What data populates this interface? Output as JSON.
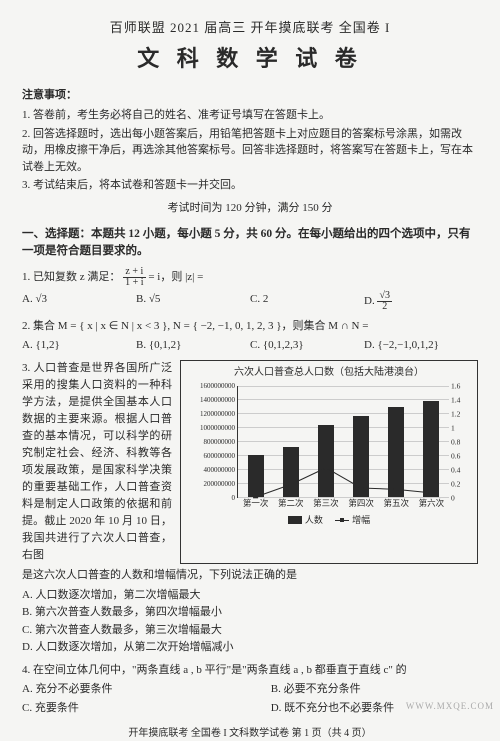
{
  "header": {
    "line1": "百师联盟 2021 届高三  开年摸底联考  全国卷 I",
    "line2": "文 科 数 学 试 卷"
  },
  "notice": {
    "title": "注意事项：",
    "items": [
      "1. 答卷前，考生务必将自己的姓名、准考证号填写在答题卡上。",
      "2. 回答选择题时，选出每小题答案后，用铅笔把答题卡上对应题目的答案标号涂黑，如需改动，用橡皮擦干净后，再选涂其他答案标号。回答非选择题时，将答案写在答题卡上，写在本试卷上无效。",
      "3. 考试结束后，将本试卷和答题卡一并交回。"
    ],
    "time": "考试时间为 120 分钟，满分 150 分"
  },
  "section1": {
    "title": "一、选择题：本题共 12 小题，每小题 5 分，共 60 分。在每小题给出的四个选项中，只有一项是符合题目要求的。"
  },
  "q1": {
    "stem_pre": "1. 已知复数 z 满足：",
    "stem_post": "= i，则 |z| =",
    "frac_num": "z + i",
    "frac_den": "1 + i",
    "A": "A. √3",
    "B": "B. √5",
    "C": "C. 2",
    "D_pre": "D. ",
    "D_num": "√3",
    "D_den": "2"
  },
  "q2": {
    "stem": "2. 集合 M = { x | x ∈ N | x < 3 }, N = { −2, −1, 0, 1, 2, 3 }，则集合 M ∩ N =",
    "A": "A. {1,2}",
    "B": "B. {0,1,2}",
    "C": "C. {0,1,2,3}",
    "D": "D. {−2,−1,0,1,2}"
  },
  "q3": {
    "text": "3. 人口普查是世界各国所广泛采用的搜集人口资料的一种科学方法，是提供全国基本人口数据的主要来源。根据人口普查的基本情况，可以科学的研究制定社会、经济、科教等各项发展政策，是国家科学决策的重要基础工作，人口普查资料是制定人口政策的依据和前提。截止 2020 年 10 月 10 日，我国共进行了六次人口普查，右图",
    "cont": "是这六次人口普查的人数和增幅情况，下列说法正确的是",
    "A": "A. 人口数逐次增加，第二次增幅最大",
    "B": "B. 第六次普查人数最多，第四次增幅最小",
    "C": "C. 第六次普查人数最多，第三次增幅最大",
    "D": "D. 人口数逐次增加，从第二次开始增幅减小"
  },
  "chart": {
    "title": "六次人口普查总人口数（包括大陆港澳台）",
    "yticks_left": [
      "1600000000",
      "1400000000",
      "1200000000",
      "1000000000",
      "800000000",
      "600000000",
      "400000000",
      "200000000",
      "0"
    ],
    "yticks_right": [
      "1.6",
      "1.4",
      "1.2",
      "1",
      "0.8",
      "0.6",
      "0.4",
      "0.2",
      "0"
    ],
    "xlabels": [
      "第一次",
      "第二次",
      "第三次",
      "第四次",
      "第五次",
      "第六次"
    ],
    "bar_values": [
      6.0,
      7.2,
      10.3,
      11.6,
      12.9,
      13.7
    ],
    "bar_max": 16,
    "line_values": [
      0,
      0.18,
      0.42,
      0.13,
      0.11,
      0.06
    ],
    "line_max": 1.6,
    "legend_bar": "人数",
    "legend_line": "增幅",
    "bar_color": "#2a2a2a",
    "grid_color": "#cccccc"
  },
  "q4": {
    "stem": "4. 在空间立体几何中，\"两条直线 a , b 平行\"是\"两条直线 a , b 都垂直于直线 c\" 的",
    "A": "A. 充分不必要条件",
    "B": "B. 必要不充分条件",
    "C": "C. 充要条件",
    "D": "D. 既不充分也不必要条件"
  },
  "footer": "开年摸底联考  全国卷 I   文科数学试卷   第 1 页（共 4 页）",
  "watermark": "WWW.MXQE.COM"
}
